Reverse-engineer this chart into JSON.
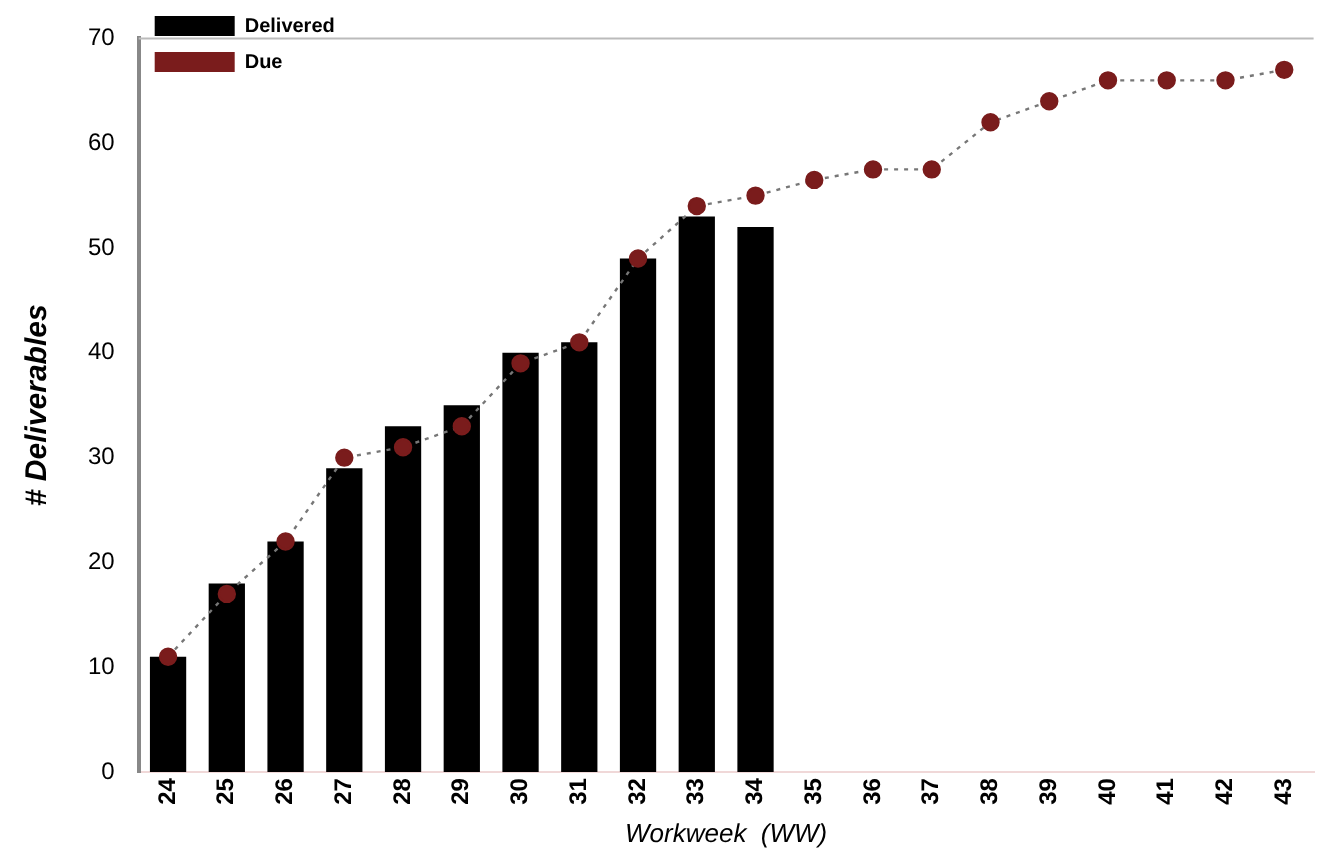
{
  "chart_data": {
    "type": "bar",
    "xlabel": "Workweek  (WW)",
    "ylabel": "# Deliverables",
    "categories": [
      "24",
      "25",
      "26",
      "27",
      "28",
      "29",
      "30",
      "31",
      "32",
      "33",
      "34",
      "35",
      "36",
      "37",
      "38",
      "39",
      "40",
      "41",
      "42",
      "43"
    ],
    "series": [
      {
        "name": "Delivered",
        "color": "#000000",
        "values": [
          11,
          18,
          22,
          29,
          33,
          35,
          40,
          41,
          49,
          53,
          52,
          null,
          null,
          null,
          null,
          null,
          null,
          null,
          null,
          null
        ]
      },
      {
        "name": "Due",
        "type": "line",
        "color": "#7a1c1c",
        "marker": "circle",
        "line_style": "dotted",
        "values": [
          11,
          17,
          22,
          30,
          31,
          33,
          39,
          41,
          49,
          54,
          55,
          56.5,
          57.5,
          57.5,
          62,
          64,
          66,
          66,
          66,
          67
        ]
      }
    ],
    "ylim": [
      0,
      70
    ],
    "yticks": [
      0,
      10,
      20,
      30,
      40,
      50,
      60,
      70
    ],
    "grid": false,
    "legend": "top left"
  }
}
